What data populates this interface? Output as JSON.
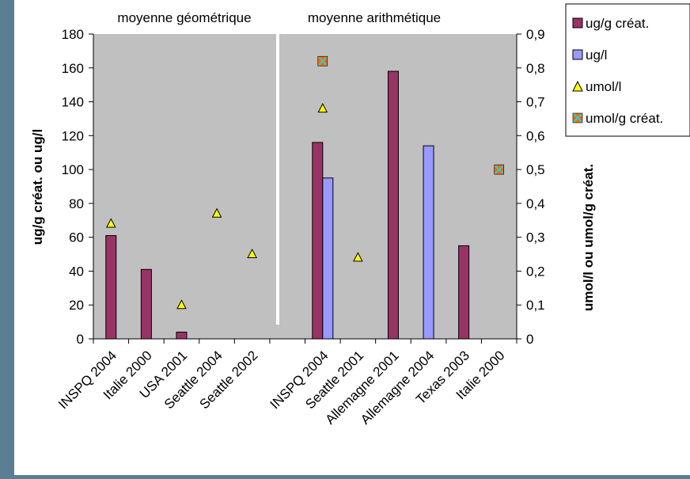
{
  "chart_data": {
    "type": "bar",
    "categories": [
      "INSPQ 2004",
      "Italie 2000",
      "USA 2001",
      "Seattle 2004",
      "Seattle 2002",
      "",
      "INSPQ 2004",
      "Seattle 2001",
      "Allemagne 2001",
      "Allemagne 2004",
      "Texas 2003",
      "Italie 2000"
    ],
    "series": [
      {
        "name": "ug/g créat.",
        "kind": "bar",
        "axis": "left",
        "color": "#993366",
        "values": [
          61,
          41,
          4,
          null,
          null,
          null,
          116,
          null,
          158,
          null,
          55,
          null
        ]
      },
      {
        "name": "ug/l",
        "kind": "bar",
        "axis": "left",
        "color": "#9999ff",
        "values": [
          null,
          null,
          null,
          null,
          null,
          null,
          95,
          null,
          null,
          114,
          null,
          null
        ]
      },
      {
        "name": "umol/l",
        "kind": "marker",
        "marker": "triangle",
        "axis": "right",
        "color": "#ffff00",
        "values": [
          0.34,
          null,
          0.1,
          0.37,
          0.25,
          null,
          0.68,
          0.24,
          null,
          null,
          null,
          null
        ]
      },
      {
        "name": "umol/g créat.",
        "kind": "marker",
        "marker": "x-square",
        "axis": "right",
        "color": "#ff6600",
        "values": [
          null,
          null,
          null,
          null,
          null,
          null,
          0.82,
          null,
          null,
          null,
          null,
          0.5
        ]
      }
    ],
    "y_left": {
      "label": "ug/g créat. ou ug/l",
      "lim": [
        0,
        180
      ],
      "ticks": [
        "0",
        "20",
        "40",
        "60",
        "80",
        "100",
        "120",
        "140",
        "160",
        "180"
      ]
    },
    "y_right": {
      "label": "umol/l ou umol/g créat.",
      "lim": [
        0,
        0.9
      ],
      "ticks": [
        "0",
        "0,1",
        "0,2",
        "0,3",
        "0,4",
        "0,5",
        "0,6",
        "0,7",
        "0,8",
        "0,9"
      ]
    },
    "annotations": [
      "moyenne géométrique",
      "moyenne arithmétique"
    ],
    "grid": false,
    "legend_position": "top-right",
    "plot_background": "#c0c0c0"
  }
}
